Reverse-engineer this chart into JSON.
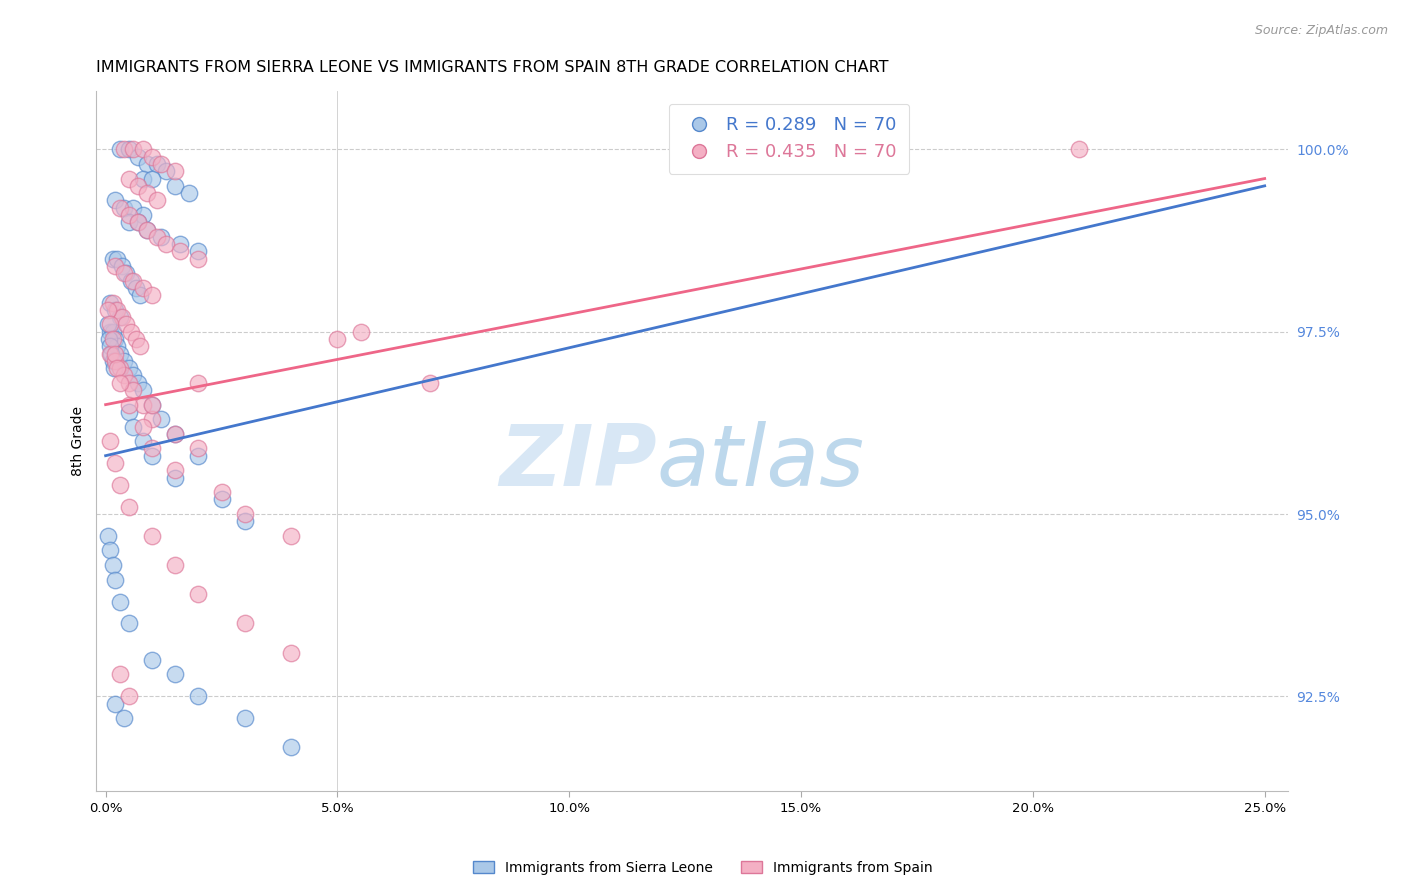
{
  "title": "IMMIGRANTS FROM SIERRA LEONE VS IMMIGRANTS FROM SPAIN 8TH GRADE CORRELATION CHART",
  "source": "Source: ZipAtlas.com",
  "ylabel": "8th Grade",
  "x_ticks_vals": [
    0.0,
    5.0,
    10.0,
    15.0,
    20.0,
    25.0
  ],
  "x_ticks_labels": [
    "0.0%",
    "5.0%",
    "10.0%",
    "15.0%",
    "20.0%",
    "25.0%"
  ],
  "y_ticks_vals": [
    92.5,
    95.0,
    97.5,
    100.0
  ],
  "y_ticks_labels": [
    "92.5%",
    "95.0%",
    "97.5%",
    "100.0%"
  ],
  "y_min": 91.2,
  "y_max": 100.8,
  "x_min": -0.2,
  "x_max": 25.5,
  "legend_r1": "R = 0.289   N = 70",
  "legend_r2": "R = 0.435   N = 70",
  "legend_label_sierra": "Immigrants from Sierra Leone",
  "legend_label_spain": "Immigrants from Spain",
  "blue_face": "#aac8e8",
  "blue_edge": "#5588cc",
  "pink_face": "#f4b0c4",
  "pink_edge": "#dd7799",
  "blue_line_color": "#4477cc",
  "pink_line_color": "#ee6688",
  "right_axis_color": "#5588dd",
  "blue_scatter_x": [
    0.3,
    0.5,
    0.7,
    0.9,
    1.1,
    1.3,
    0.8,
    1.0,
    1.5,
    1.8,
    0.2,
    0.4,
    0.6,
    0.8,
    0.5,
    0.7,
    0.9,
    1.2,
    1.6,
    2.0,
    0.15,
    0.25,
    0.35,
    0.45,
    0.55,
    0.65,
    0.75,
    0.1,
    0.2,
    0.3,
    0.1,
    0.15,
    0.2,
    0.25,
    0.3,
    0.4,
    0.5,
    0.6,
    0.7,
    0.8,
    1.0,
    1.2,
    1.5,
    2.0,
    0.05,
    0.08,
    0.1,
    0.12,
    0.15,
    0.18,
    0.5,
    0.6,
    0.8,
    1.0,
    1.5,
    2.5,
    3.0,
    0.05,
    0.1,
    0.15,
    0.2,
    0.3,
    0.5,
    1.0,
    1.5,
    2.0,
    3.0,
    4.0,
    0.2,
    0.4
  ],
  "blue_scatter_y": [
    100.0,
    100.0,
    99.9,
    99.8,
    99.8,
    99.7,
    99.6,
    99.6,
    99.5,
    99.4,
    99.3,
    99.2,
    99.2,
    99.1,
    99.0,
    99.0,
    98.9,
    98.8,
    98.7,
    98.6,
    98.5,
    98.5,
    98.4,
    98.3,
    98.2,
    98.1,
    98.0,
    97.9,
    97.8,
    97.7,
    97.5,
    97.5,
    97.4,
    97.3,
    97.2,
    97.1,
    97.0,
    96.9,
    96.8,
    96.7,
    96.5,
    96.3,
    96.1,
    95.8,
    97.6,
    97.4,
    97.3,
    97.2,
    97.1,
    97.0,
    96.4,
    96.2,
    96.0,
    95.8,
    95.5,
    95.2,
    94.9,
    94.7,
    94.5,
    94.3,
    94.1,
    93.8,
    93.5,
    93.0,
    92.8,
    92.5,
    92.2,
    91.8,
    92.4,
    92.2
  ],
  "pink_scatter_x": [
    0.4,
    0.6,
    0.8,
    1.0,
    1.2,
    1.5,
    0.5,
    0.7,
    0.9,
    1.1,
    0.3,
    0.5,
    0.7,
    0.9,
    1.1,
    1.3,
    1.6,
    2.0,
    0.2,
    0.4,
    0.6,
    0.8,
    1.0,
    0.15,
    0.25,
    0.35,
    0.45,
    0.55,
    0.65,
    0.75,
    0.1,
    0.2,
    0.3,
    0.4,
    0.5,
    0.6,
    0.8,
    1.0,
    1.5,
    2.0,
    0.05,
    0.1,
    0.15,
    0.2,
    0.25,
    0.3,
    0.5,
    0.8,
    1.0,
    1.5,
    2.5,
    3.0,
    4.0,
    5.0,
    0.1,
    0.2,
    0.3,
    0.5,
    1.0,
    1.5,
    2.0,
    3.0,
    4.0,
    5.5,
    7.0,
    21.0,
    0.3,
    0.5,
    1.0,
    2.0
  ],
  "pink_scatter_y": [
    100.0,
    100.0,
    100.0,
    99.9,
    99.8,
    99.7,
    99.6,
    99.5,
    99.4,
    99.3,
    99.2,
    99.1,
    99.0,
    98.9,
    98.8,
    98.7,
    98.6,
    98.5,
    98.4,
    98.3,
    98.2,
    98.1,
    98.0,
    97.9,
    97.8,
    97.7,
    97.6,
    97.5,
    97.4,
    97.3,
    97.2,
    97.1,
    97.0,
    96.9,
    96.8,
    96.7,
    96.5,
    96.3,
    96.1,
    95.9,
    97.8,
    97.6,
    97.4,
    97.2,
    97.0,
    96.8,
    96.5,
    96.2,
    95.9,
    95.6,
    95.3,
    95.0,
    94.7,
    97.4,
    96.0,
    95.7,
    95.4,
    95.1,
    94.7,
    94.3,
    93.9,
    93.5,
    93.1,
    97.5,
    96.8,
    100.0,
    92.8,
    92.5,
    96.5,
    96.8
  ],
  "blue_line_x": [
    0.0,
    25.0
  ],
  "blue_line_y": [
    95.8,
    99.5
  ],
  "pink_line_x": [
    0.0,
    25.0
  ],
  "pink_line_y": [
    96.5,
    99.6
  ],
  "watermark_part1": "ZIP",
  "watermark_part2": "atlas",
  "bg_color": "#ffffff",
  "grid_color": "#cccccc",
  "title_fontsize": 11.5,
  "tick_fontsize": 9.5
}
